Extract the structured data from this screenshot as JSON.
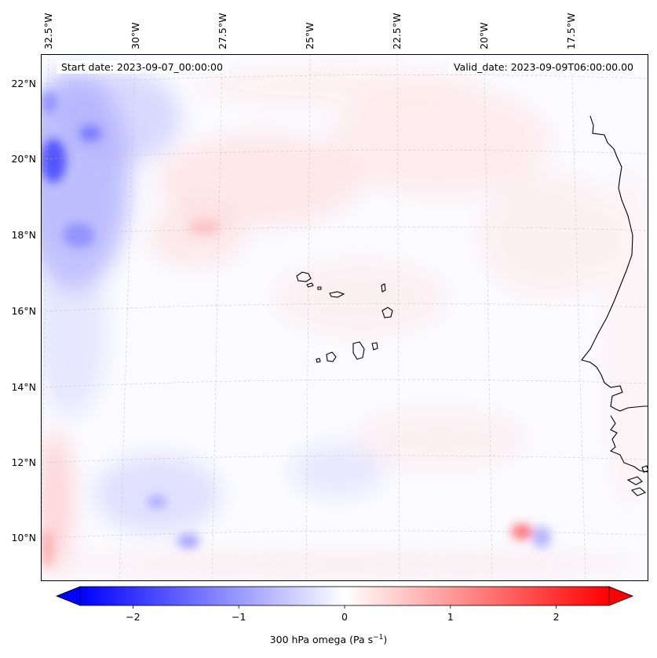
{
  "map": {
    "start_date": "Start date: 2023-09-07_00:00:00",
    "valid_date": "Valid_date: 2023-09-09T06:00:00.00",
    "lon_labels": [
      "32.5°W",
      "30°W",
      "27.5°W",
      "25°W",
      "22.5°W",
      "20°W",
      "17.5°W"
    ],
    "lat_labels": [
      "22°N",
      "20°N",
      "18°N",
      "16°N",
      "14°N",
      "12°N",
      "10°N"
    ],
    "features": [
      "Cape Verde Islands",
      "West African coastline"
    ]
  },
  "colorbar": {
    "variable": "300 hPa omega",
    "unit_text": "(Pa s",
    "unit_exp": "−1",
    "unit_close": ")",
    "min": -2.5,
    "max": 2.5,
    "colormap": "bwr",
    "extend": "both",
    "ticks": [
      -2,
      -1,
      0,
      1,
      2
    ],
    "tick_labels": [
      "−2",
      "−1",
      "0",
      "1",
      "2"
    ],
    "colors": {
      "neg": "#0000ff",
      "zero": "#ffffff",
      "pos": "#ff0000"
    }
  }
}
